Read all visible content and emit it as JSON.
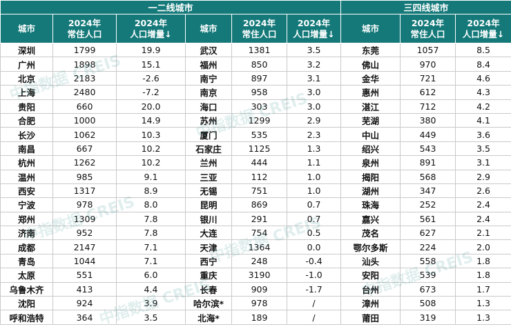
{
  "table": {
    "groups": [
      "一二线城市",
      "三四线城市"
    ],
    "columns": [
      {
        "lines": [
          "城市"
        ]
      },
      {
        "lines": [
          "2024年",
          "常住人口"
        ]
      },
      {
        "lines": [
          "2024年",
          "人口增量↓"
        ]
      },
      {
        "lines": [
          "城市"
        ]
      },
      {
        "lines": [
          "2024年",
          "常住人口"
        ]
      },
      {
        "lines": [
          "2024年",
          "人口增量↓"
        ]
      },
      {
        "lines": [
          "城市"
        ]
      },
      {
        "lines": [
          "2024年",
          "常住人口"
        ]
      },
      {
        "lines": [
          "2024年",
          "人口增量↓"
        ]
      }
    ],
    "rows": [
      [
        "深圳",
        "1799",
        "19.9",
        "武汉",
        "1381",
        "3.5",
        "东莞",
        "1057",
        "8.5"
      ],
      [
        "广州",
        "1898",
        "15.1",
        "福州",
        "850",
        "3.2",
        "佛山",
        "970",
        "8.4"
      ],
      [
        "北京",
        "2183",
        "-2.6",
        "南宁",
        "897",
        "3.1",
        "金华",
        "721",
        "4.6"
      ],
      [
        "上海",
        "2480",
        "-7.2",
        "南京",
        "958",
        "3.0",
        "惠州",
        "612",
        "4.3"
      ],
      [
        "贵阳",
        "660",
        "20.0",
        "海口",
        "303",
        "3.0",
        "湛江",
        "712",
        "4.2"
      ],
      [
        "合肥",
        "1000",
        "14.9",
        "苏州",
        "1299",
        "2.9",
        "芜湖",
        "380",
        "4.1"
      ],
      [
        "长沙",
        "1062",
        "10.3",
        "厦门",
        "535",
        "2.3",
        "中山",
        "449",
        "3.6"
      ],
      [
        "南昌",
        "667",
        "10.2",
        "石家庄",
        "1125",
        "1.3",
        "绍兴",
        "543",
        "3.5"
      ],
      [
        "杭州",
        "1262",
        "10.2",
        "兰州",
        "444",
        "1.1",
        "泉州",
        "891",
        "3.1"
      ],
      [
        "温州",
        "985",
        "9.1",
        "三亚",
        "112",
        "1.0",
        "揭阳",
        "568",
        "2.9"
      ],
      [
        "西安",
        "1317",
        "8.9",
        "无锡",
        "751",
        "1.0",
        "湖州",
        "347",
        "2.6"
      ],
      [
        "宁波",
        "978",
        "8.0",
        "昆明",
        "869",
        "0.7",
        "珠海",
        "252",
        "2.4"
      ],
      [
        "郑州",
        "1309",
        "7.8",
        "银川",
        "291",
        "0.7",
        "嘉兴",
        "561",
        "2.4"
      ],
      [
        "济南",
        "952",
        "7.8",
        "大连",
        "754",
        "0.5",
        "茂名",
        "627",
        "2.1"
      ],
      [
        "成都",
        "2147",
        "7.1",
        "天津",
        "1364",
        "0.0",
        "鄂尔多斯",
        "224",
        "2.0"
      ],
      [
        "青岛",
        "1044",
        "7.1",
        "西宁",
        "248",
        "-0.4",
        "汕头",
        "558",
        "1.8"
      ],
      [
        "太原",
        "551",
        "6.0",
        "重庆",
        "3190",
        "-1.0",
        "安阳",
        "539",
        "1.8"
      ],
      [
        "乌鲁木齐",
        "413",
        "4.4",
        "长春",
        "909",
        "-1.7",
        "台州",
        "673",
        "1.7"
      ],
      [
        "沈阳",
        "924",
        "3.9",
        "哈尔滨*",
        "978",
        "/",
        "漳州",
        "508",
        "1.3"
      ],
      [
        "呼和浩特",
        "364",
        "3.5",
        "北海*",
        "189",
        "/",
        "莆田",
        "319",
        "1.3"
      ]
    ]
  },
  "watermark": "中指数据 CREIS"
}
